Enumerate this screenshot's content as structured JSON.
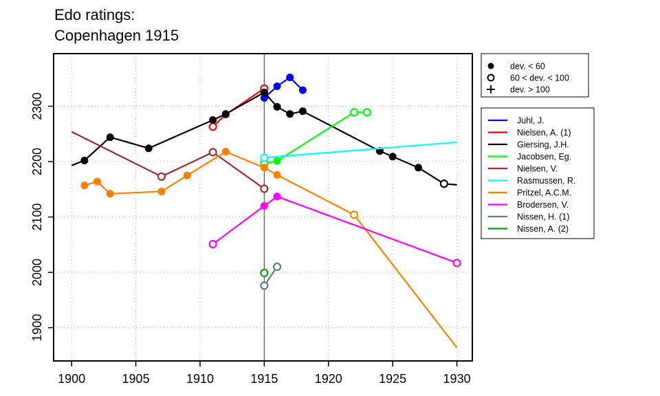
{
  "chart_data": {
    "type": "line",
    "title_lines": [
      "Edo ratings:",
      "Copenhagen 1915"
    ],
    "xlabel": "",
    "ylabel": "",
    "xlim": [
      1898.6,
      1931.2
    ],
    "ylim": [
      1840,
      2395
    ],
    "x_ticks": [
      1900,
      1905,
      1910,
      1915,
      1920,
      1925,
      1930
    ],
    "y_ticks": [
      1900,
      2000,
      2100,
      2200,
      2300
    ],
    "grid": true,
    "reference_line_x": 1915,
    "marker_legend": [
      {
        "symbol": "filled-circle",
        "label": "dev. < 60"
      },
      {
        "symbol": "open-circle",
        "label": "60 < dev. < 100"
      },
      {
        "symbol": "plus",
        "label": "dev. > 100"
      }
    ],
    "series": [
      {
        "name": "Juhl, J.",
        "color": "#0000ff",
        "points": [
          [
            1915,
            2315,
            "filled"
          ],
          [
            1916,
            2336,
            "filled"
          ],
          [
            1917,
            2352,
            "filled"
          ],
          [
            1918,
            2329,
            "filled"
          ]
        ]
      },
      {
        "name": "Nielsen, A. (1)",
        "color": "#ff0000",
        "points": [
          [
            1911,
            2263,
            "open"
          ],
          [
            1912,
            2285,
            "filled"
          ],
          [
            1915,
            2332,
            "open"
          ]
        ]
      },
      {
        "name": "Giersing, J.H.",
        "color": "#000000",
        "points": [
          [
            1900,
            2193,
            "none"
          ],
          [
            1901,
            2202,
            "filled"
          ],
          [
            1903,
            2244,
            "filled"
          ],
          [
            1906,
            2224,
            "filled"
          ],
          [
            1911,
            2275,
            "filled"
          ],
          [
            1912,
            2286,
            "filled"
          ],
          [
            1915,
            2325,
            "filled"
          ],
          [
            1916,
            2299,
            "filled"
          ],
          [
            1917,
            2286,
            "filled"
          ],
          [
            1918,
            2291,
            "filled"
          ],
          [
            1924,
            2219,
            "filled"
          ],
          [
            1925,
            2209,
            "filled"
          ],
          [
            1927,
            2189,
            "filled"
          ],
          [
            1929,
            2160,
            "open"
          ],
          [
            1930,
            2158,
            "none"
          ]
        ]
      },
      {
        "name": "Jacobsen, Eg.",
        "color": "#00ff00",
        "points": [
          [
            1915,
            2197,
            "open"
          ],
          [
            1916,
            2201,
            "filled"
          ],
          [
            1922,
            2289,
            "open"
          ],
          [
            1923,
            2289,
            "open"
          ]
        ]
      },
      {
        "name": "Nielsen, V.",
        "color": "#a52a2a",
        "points": [
          [
            1900,
            2254,
            "none"
          ],
          [
            1907,
            2173,
            "open"
          ],
          [
            1911,
            2217,
            "open"
          ],
          [
            1915,
            2151,
            "open"
          ]
        ]
      },
      {
        "name": "Rasmussen, R.",
        "color": "#00ffff",
        "points": [
          [
            1915,
            2207,
            "open"
          ],
          [
            1930,
            2235,
            "none"
          ]
        ]
      },
      {
        "name": "Pritzel, A.C.M.",
        "color": "#ff7f00",
        "points": [
          [
            1901,
            2157,
            "filled"
          ],
          [
            1902,
            2164,
            "filled"
          ],
          [
            1903,
            2142,
            "filled"
          ],
          [
            1907,
            2146,
            "filled"
          ],
          [
            1909,
            2175,
            "filled"
          ],
          [
            1912,
            2218,
            "filled"
          ],
          [
            1915,
            2189,
            "filled"
          ],
          [
            1916,
            2176,
            "filled"
          ],
          [
            1922,
            2104,
            "open"
          ],
          [
            1930,
            1864,
            "none"
          ]
        ]
      },
      {
        "name": "Brodersen, V.",
        "color": "#ff00ff",
        "points": [
          [
            1911,
            2051,
            "open"
          ],
          [
            1915,
            2120,
            "filled"
          ],
          [
            1916,
            2137,
            "filled"
          ],
          [
            1930,
            2017,
            "open"
          ]
        ]
      },
      {
        "name": "Nissen, H. (1)",
        "color": "#607b8b",
        "points": [
          [
            1915,
            1976,
            "open"
          ],
          [
            1916,
            2010,
            "open"
          ]
        ]
      },
      {
        "name": "Nissen, A. (2)",
        "color": "#00a000",
        "points": [
          [
            1915,
            1999,
            "open"
          ]
        ]
      }
    ]
  }
}
